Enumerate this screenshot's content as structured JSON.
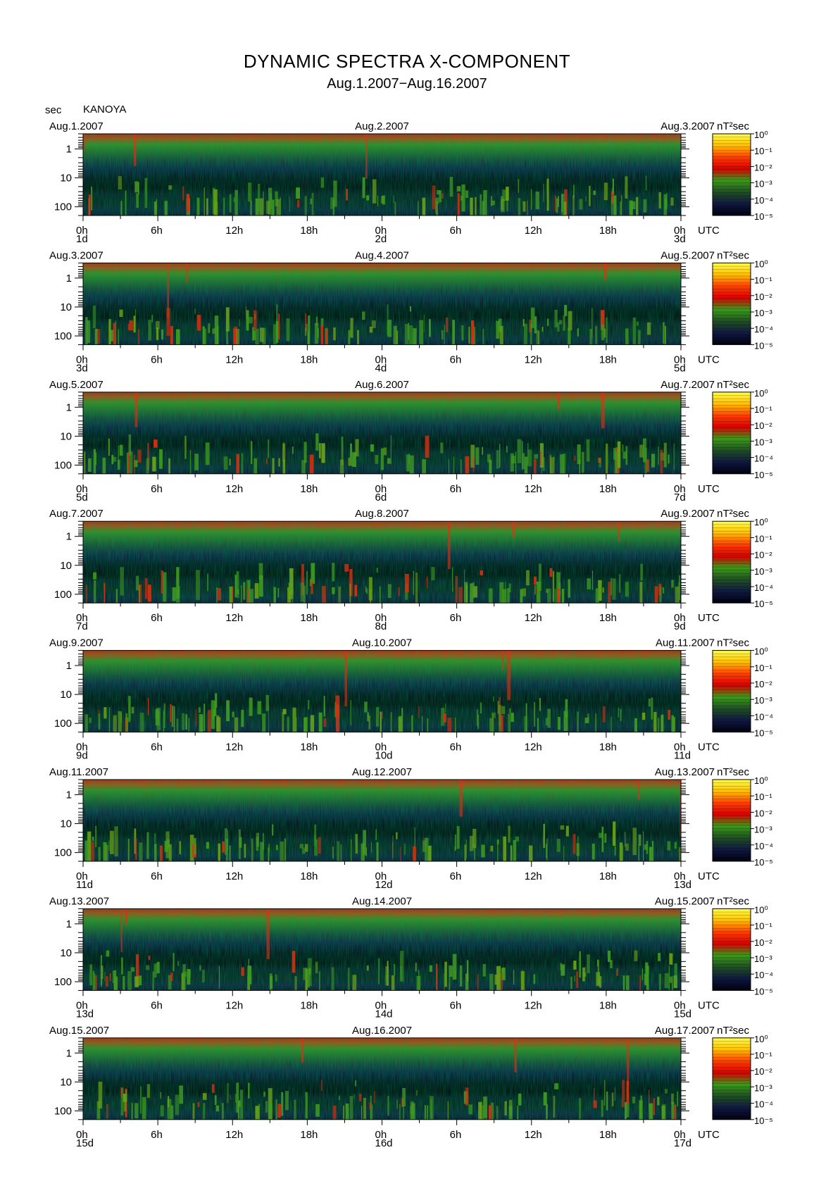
{
  "title": "DYNAMIC SPECTRA X-COMPONENT",
  "subtitle": "Aug.1.2007−Aug.16.2007",
  "unit_label": "sec",
  "station": "KANOYA",
  "hour_ticks": [
    "0h",
    "6h",
    "12h",
    "18h",
    "0h",
    "6h",
    "12h",
    "18h",
    "0h"
  ],
  "utc_label": "UTC",
  "period_ticks": [
    "1",
    "10",
    "100"
  ],
  "colorbar": {
    "unit": "nT²sec",
    "labels": [
      "10⁰",
      "10⁻¹",
      "10⁻²",
      "10⁻³",
      "10⁻⁴",
      "10⁻⁵"
    ],
    "stops": [
      "#ffff4d",
      "#ffc000",
      "#ff4000",
      "#d80000",
      "#3a9a1a",
      "#1f4f23",
      "#101840",
      "#000010"
    ]
  },
  "chart_data": {
    "type": "heatmap",
    "x_unit": "hours UTC",
    "y_unit": "sec (period, log scale)",
    "ylim": [
      200,
      0.3
    ],
    "z_unit": "nT²sec",
    "zlim": [
      "1e-5",
      "1e0"
    ],
    "panels": [
      {
        "start": "Aug.1.2007",
        "mid": "Aug.2.2007",
        "end": "Aug.3.2007",
        "day_start": "1d",
        "day_mid": "2d",
        "day_end": "3d"
      },
      {
        "start": "Aug.3.2007",
        "mid": "Aug.4.2007",
        "end": "Aug.5.2007",
        "day_start": "3d",
        "day_mid": "4d",
        "day_end": "5d"
      },
      {
        "start": "Aug.5.2007",
        "mid": "Aug.6.2007",
        "end": "Aug.7.2007",
        "day_start": "5d",
        "day_mid": "6d",
        "day_end": "7d"
      },
      {
        "start": "Aug.7.2007",
        "mid": "Aug.8.2007",
        "end": "Aug.9.2007",
        "day_start": "7d",
        "day_mid": "8d",
        "day_end": "9d"
      },
      {
        "start": "Aug.9.2007",
        "mid": "Aug.10.2007",
        "end": "Aug.11.2007",
        "day_start": "9d",
        "day_mid": "10d",
        "day_end": "11d"
      },
      {
        "start": "Aug.11.2007",
        "mid": "Aug.12.2007",
        "end": "Aug.13.2007",
        "day_start": "11d",
        "day_mid": "12d",
        "day_end": "13d"
      },
      {
        "start": "Aug.13.2007",
        "mid": "Aug.14.2007",
        "end": "Aug.15.2007",
        "day_start": "13d",
        "day_mid": "14d",
        "day_end": "15d"
      },
      {
        "start": "Aug.15.2007",
        "mid": "Aug.16.2007",
        "end": "Aug.17.2007",
        "day_start": "15d",
        "day_mid": "16d",
        "day_end": "17d"
      }
    ]
  }
}
